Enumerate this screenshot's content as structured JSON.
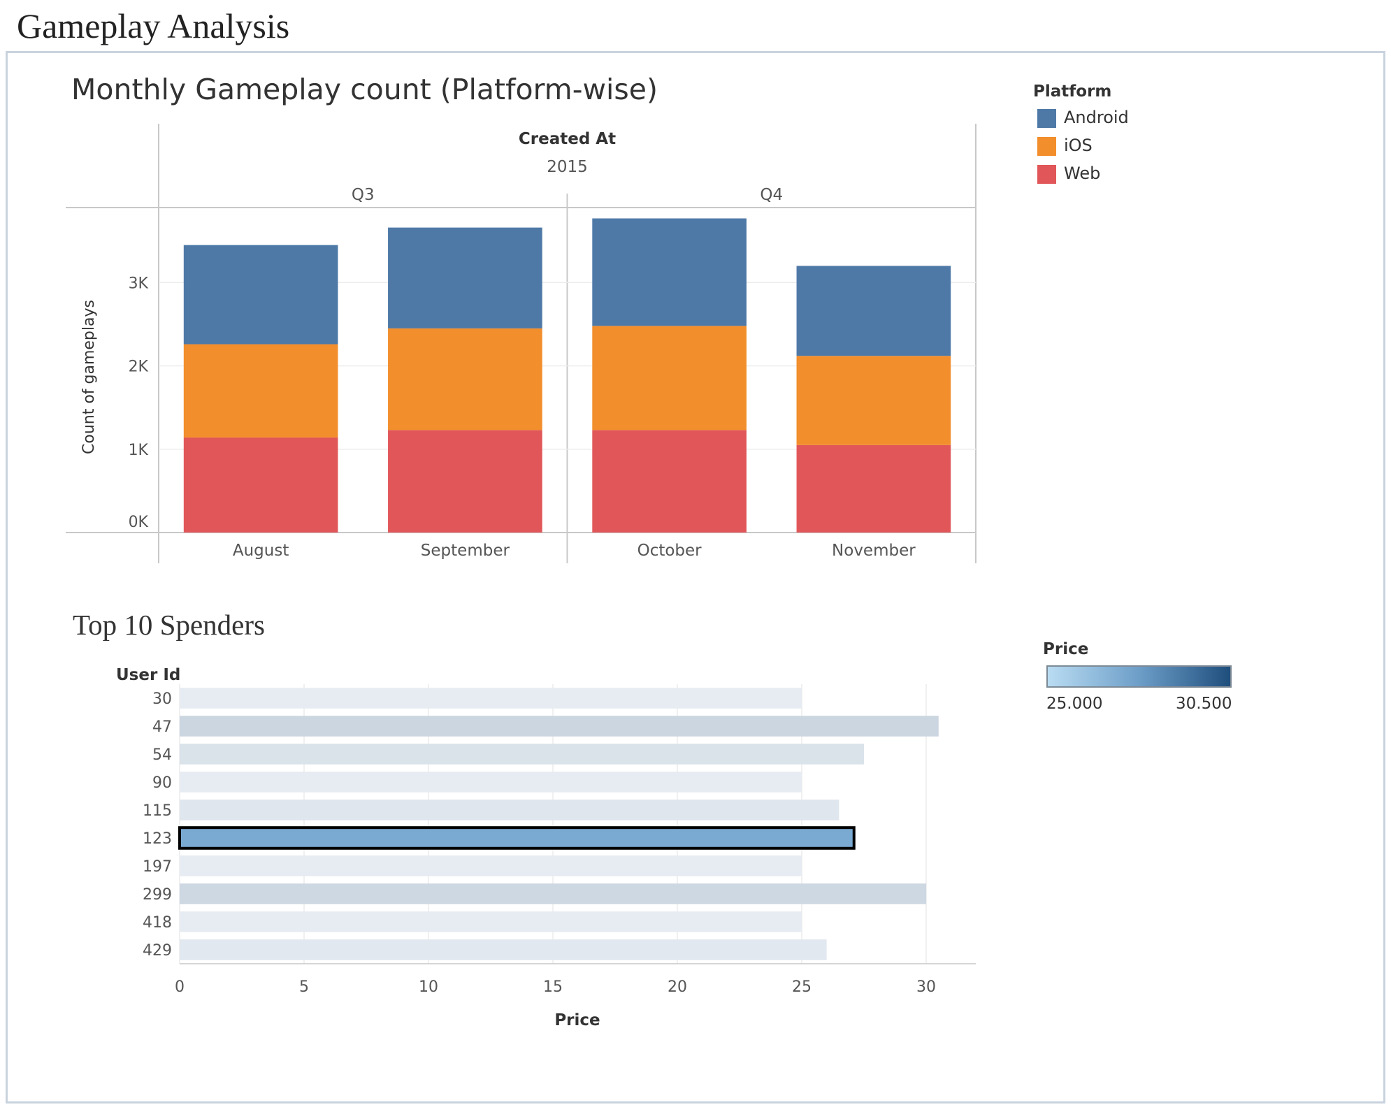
{
  "dashboard": {
    "title": "Gameplay Analysis"
  },
  "colors": {
    "android": "#4e79a7",
    "ios": "#f28e2b",
    "web": "#e15759",
    "gridline": "#ececec",
    "axis": "#c8c8c8"
  },
  "legend": {
    "title": "Platform",
    "items": [
      {
        "label": "Android",
        "color": "#4e79a7"
      },
      {
        "label": "iOS",
        "color": "#f28e2b"
      },
      {
        "label": "Web",
        "color": "#e15759"
      }
    ]
  },
  "price_legend": {
    "title": "Price",
    "min_label": "25.000",
    "max_label": "30.500"
  },
  "chart_data": [
    {
      "type": "bar",
      "stacked": true,
      "title": "Monthly Gameplay count (Platform-wise)",
      "header": {
        "field": "Created At",
        "year": "2015",
        "quarters": [
          {
            "label": "Q3",
            "months": 2
          },
          {
            "label": "Q4",
            "months": 2
          }
        ]
      },
      "categories": [
        "August",
        "September",
        "October",
        "November"
      ],
      "series": [
        {
          "name": "Web",
          "color": "#e15759",
          "values": [
            1140,
            1230,
            1230,
            1050
          ]
        },
        {
          "name": "iOS",
          "color": "#f28e2b",
          "values": [
            1120,
            1220,
            1250,
            1070
          ]
        },
        {
          "name": "Android",
          "color": "#4e79a7",
          "values": [
            1190,
            1210,
            1290,
            1080
          ]
        }
      ],
      "ylabel": "Count of gameplays",
      "yticks": [
        0,
        1000,
        2000,
        3000
      ],
      "ytick_labels": [
        "0K",
        "1K",
        "2K",
        "3K"
      ],
      "ylim": [
        0,
        3900
      ],
      "grid": true,
      "legend_position": "right"
    },
    {
      "type": "bar",
      "orientation": "horizontal",
      "title": "Top 10 Spenders",
      "category_label": "User Id",
      "categories": [
        "30",
        "47",
        "54",
        "90",
        "115",
        "123",
        "197",
        "299",
        "418",
        "429"
      ],
      "values": [
        25.0,
        30.5,
        27.5,
        25.0,
        26.5,
        27.1,
        25.0,
        30.0,
        25.0,
        26.0
      ],
      "highlighted": "123",
      "xlabel": "Price",
      "xticks": [
        0,
        5,
        10,
        15,
        20,
        25,
        30
      ],
      "xlim": [
        0,
        32
      ],
      "color_scale": {
        "min": 25.0,
        "max": 30.5
      },
      "grid": true
    }
  ]
}
